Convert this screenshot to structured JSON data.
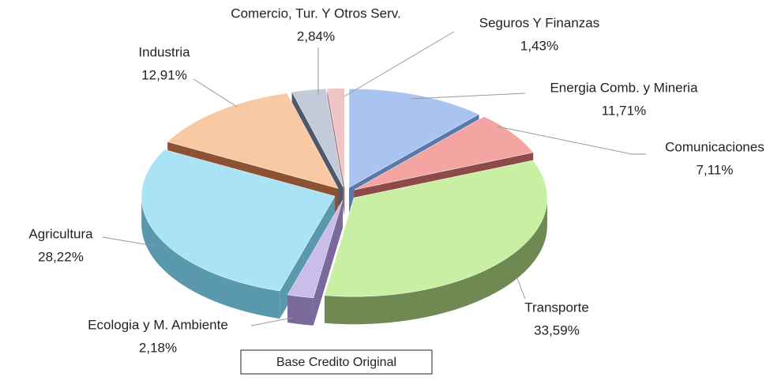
{
  "chart_data": {
    "type": "pie",
    "categories": [
      "Energia Comb. y Mineria",
      "Comunicaciones",
      "Transporte",
      "Ecologia y M. Ambiente",
      "Agricultura",
      "Industria",
      "Comercio, Tur. Y  Otros Serv.",
      "Seguros Y Finanzas"
    ],
    "values": [
      11.71,
      7.11,
      33.59,
      2.18,
      28.22,
      12.91,
      2.84,
      1.43
    ],
    "value_labels": [
      "11,71%",
      "7,11%",
      "33,59%",
      "2,18%",
      "28,22%",
      "12,91%",
      "2,84%",
      "1,43%"
    ],
    "colors": [
      "#a9c4f0",
      "#f4a5a2",
      "#c9efa3",
      "#cbbde9",
      "#a9e3f5",
      "#f8c9a2",
      "#c3cad9",
      "#f0c4c4"
    ],
    "side_colors": [
      "#5b78ab",
      "#8c4b49",
      "#6e8a52",
      "#7a6a9c",
      "#5a98ae",
      "#8b5233",
      "#4e5868",
      "#a07474"
    ],
    "annotation": "Base  Credito Original"
  }
}
